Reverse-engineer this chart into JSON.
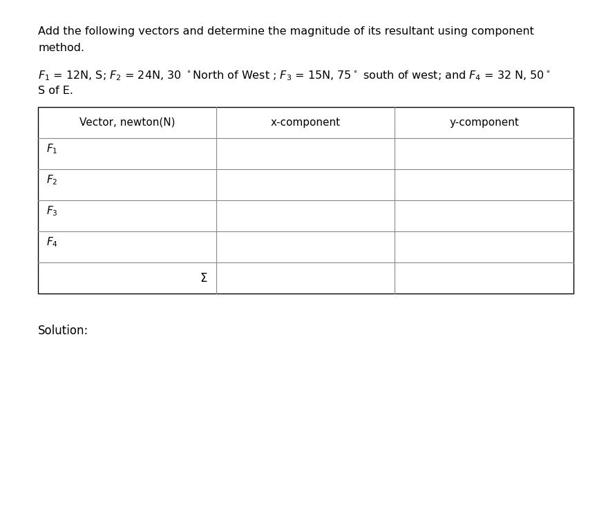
{
  "title_line1": "Add the following vectors and determine the magnitude of its resultant using component",
  "title_line2": "method.",
  "prob_line1_plain": "= 12N, S; F",
  "prob_line2": "S of E.",
  "col_headers": [
    "Vector, newton(N)",
    "x-component",
    "y-component"
  ],
  "solution_label": "Solution:",
  "background_color": "#ffffff",
  "text_color": "#000000",
  "line_color": "#888888",
  "title_fontsize": 11.5,
  "header_fontsize": 11,
  "cell_fontsize": 11,
  "solution_fontsize": 12
}
